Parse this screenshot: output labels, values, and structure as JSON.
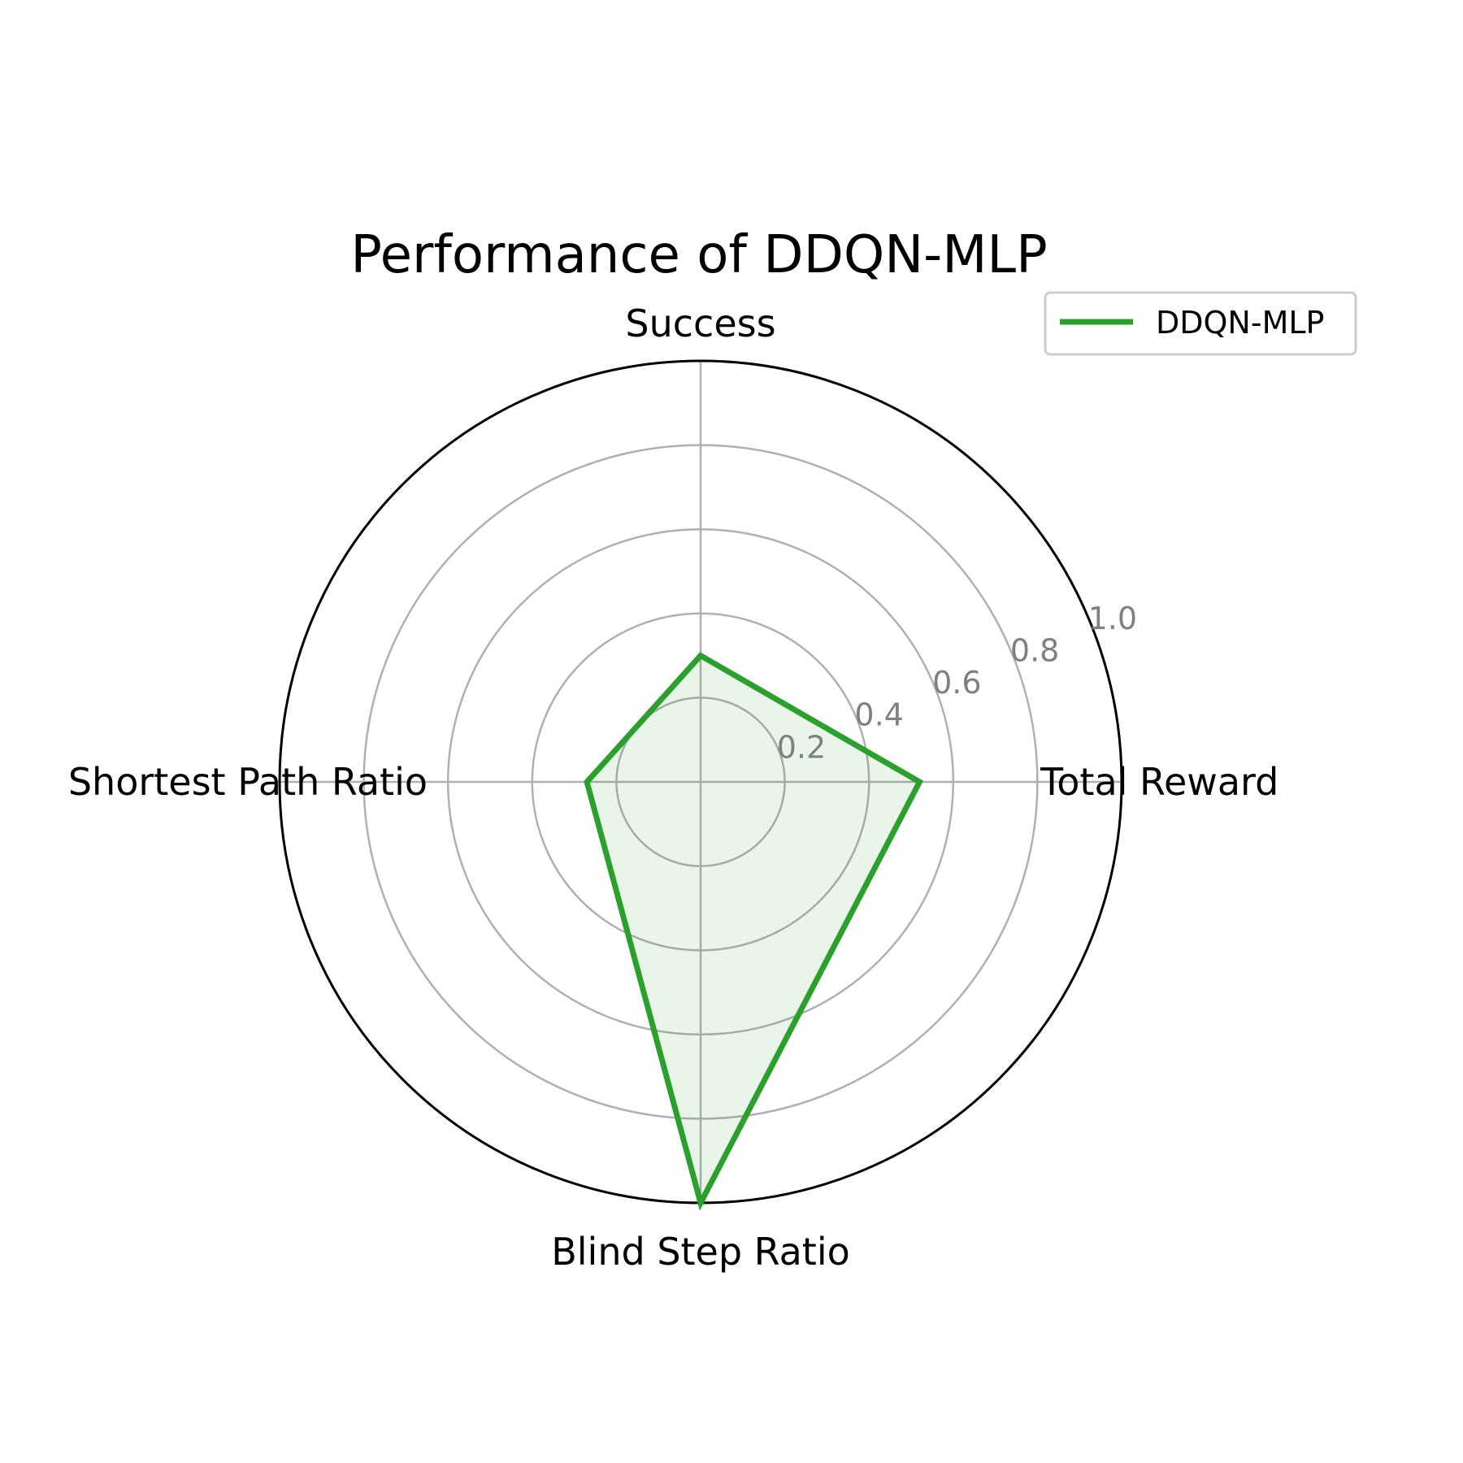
{
  "chart_data": {
    "type": "radar",
    "title": "Performance of DDQN-MLP",
    "axes": [
      "Success",
      "Total Reward",
      "Blind Step Ratio",
      "Shortest Path Ratio"
    ],
    "series": [
      {
        "name": "DDQN-MLP",
        "values": [
          0.3,
          0.52,
          1.0,
          0.27
        ],
        "color": "#2ca02c"
      }
    ],
    "r_ticks": [
      "0.2",
      "0.4",
      "0.6",
      "0.8",
      "1.0"
    ],
    "r_tick_values": [
      0.2,
      0.4,
      0.6,
      0.8,
      1.0
    ],
    "rlim": [
      0,
      1.0
    ],
    "grid": true,
    "legend_position": "top-right",
    "grid_color": "#b0b0b0",
    "fill_opacity": 0.1
  }
}
